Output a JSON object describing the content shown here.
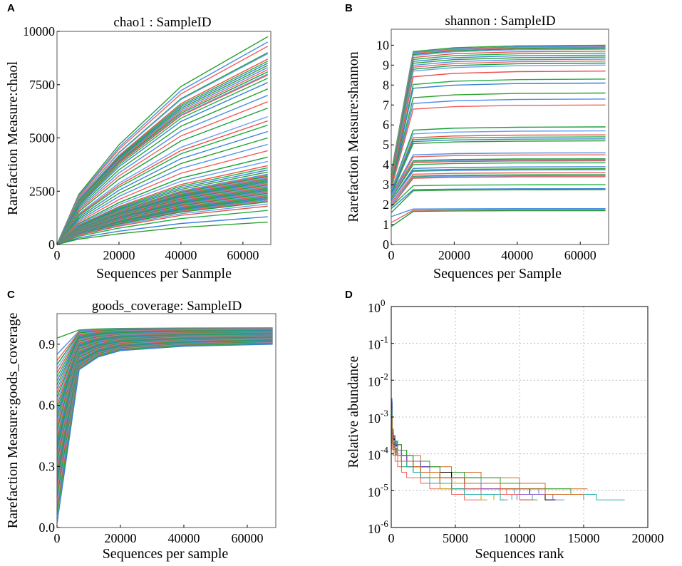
{
  "palette": [
    "#2ca02c",
    "#4a8fe8",
    "#f0605c",
    "#159f3a",
    "#6aa0f0",
    "#e8504a",
    "#20b040",
    "#3a7fd8"
  ],
  "step_palette": [
    "#2ca02c",
    "#4a8fe8",
    "#f0605c",
    "#000000",
    "#c8a000",
    "#8a5ad0",
    "#20b0b0",
    "#d06a20"
  ],
  "chart_data": [
    {
      "id": "A",
      "panel_label": "A",
      "type": "line",
      "title": "chao1 : SampleID",
      "xlabel": "Sequences per Sanmple",
      "ylabel": "Rarefaction Measure:chaol",
      "xlim": [
        0,
        69000
      ],
      "ylim": [
        0,
        10000
      ],
      "x_ticks": [
        0,
        20000,
        40000,
        60000
      ],
      "y_ticks": [
        0,
        2500,
        5000,
        7500,
        10000
      ],
      "grid": false,
      "x_points": [
        0,
        7000,
        20000,
        40000,
        68000
      ],
      "curve_shape": [
        0,
        0.24,
        0.48,
        0.76,
        1.0
      ],
      "series_count": 65,
      "series_end_values": [
        9750,
        9500,
        9300,
        9000,
        8950,
        8700,
        8600,
        8500,
        8400,
        8300,
        8200,
        8100,
        8000,
        7950,
        7800,
        7600,
        7300,
        7000,
        6700,
        6400,
        6000,
        5800,
        5600,
        5300,
        5000,
        4700,
        4400,
        4100,
        3900,
        3700,
        3600,
        3500,
        3400,
        3300,
        3250,
        3200,
        3150,
        3100,
        3050,
        3000,
        2950,
        2900,
        2850,
        2800,
        2750,
        2700,
        2650,
        2600,
        2550,
        2500,
        2450,
        2400,
        2350,
        2300,
        2250,
        2200,
        2150,
        2100,
        2050,
        2000,
        1900,
        1800,
        1600,
        1300,
        1050
      ]
    },
    {
      "id": "B",
      "panel_label": "B",
      "type": "line",
      "title": "shannon : SampleID",
      "xlabel": "Sequences per Sample",
      "ylabel": "Rarefaction Measure:shannon",
      "xlim": [
        0,
        69000
      ],
      "ylim": [
        0,
        10.8
      ],
      "x_ticks": [
        0,
        20000,
        40000,
        60000
      ],
      "y_ticks": [
        0,
        1,
        2,
        3,
        4,
        5,
        6,
        7,
        8,
        9,
        10
      ],
      "grid": false,
      "x_points": [
        0,
        7000,
        20000,
        40000,
        68000
      ],
      "curve_shape": [
        0,
        0.95,
        0.98,
        0.995,
        1.0
      ],
      "series_count": 44,
      "series_start_values": [
        3.6,
        3.5,
        3.5,
        3.4,
        3.4,
        3.3,
        3.3,
        3.2,
        3.2,
        3.1,
        3.1,
        3.0,
        3.0,
        3.0,
        2.9,
        2.9,
        2.9,
        2.8,
        2.8,
        2.7,
        2.7,
        2.6,
        2.6,
        2.6,
        2.5,
        2.5,
        2.4,
        2.4,
        2.4,
        2.3,
        2.3,
        2.2,
        2.2,
        2.2,
        2.1,
        2.0,
        2.0,
        1.9,
        1.9,
        1.8,
        1.6,
        1.4,
        1.1,
        0.9
      ],
      "series_end_values": [
        10.0,
        9.95,
        9.9,
        9.85,
        9.8,
        9.7,
        9.6,
        9.5,
        9.4,
        9.3,
        9.2,
        9.1,
        9.0,
        8.7,
        8.3,
        8.1,
        7.6,
        7.3,
        7.0,
        5.9,
        5.7,
        5.5,
        5.4,
        5.3,
        5.2,
        4.6,
        4.5,
        4.3,
        4.25,
        4.2,
        4.1,
        3.9,
        3.8,
        3.75,
        3.6,
        3.5,
        3.45,
        3.4,
        3.0,
        2.8,
        2.75,
        1.8,
        1.75,
        1.7
      ]
    },
    {
      "id": "C",
      "panel_label": "C",
      "type": "line",
      "title": "goods_coverage: SampleID",
      "xlabel": "Sequences per sample",
      "ylabel": "Rarefaction Measure:goods_coverage",
      "xlim": [
        0,
        69000
      ],
      "ylim": [
        0,
        1.05
      ],
      "x_ticks": [
        0,
        20000,
        40000,
        60000
      ],
      "y_ticks": [
        0.0,
        0.3,
        0.6,
        0.9
      ],
      "y_tick_labels": [
        "0.0",
        "0.3",
        "0.6",
        "0.9"
      ],
      "grid": false,
      "x_points": [
        0,
        7000,
        13000,
        20000,
        40000,
        68000
      ],
      "series_count": 40,
      "series_start_values": [
        0.93,
        0.85,
        0.82,
        0.8,
        0.78,
        0.76,
        0.74,
        0.72,
        0.7,
        0.68,
        0.66,
        0.64,
        0.62,
        0.6,
        0.58,
        0.56,
        0.54,
        0.52,
        0.5,
        0.48,
        0.46,
        0.44,
        0.42,
        0.4,
        0.38,
        0.36,
        0.34,
        0.32,
        0.3,
        0.28,
        0.26,
        0.24,
        0.22,
        0.2,
        0.18,
        0.15,
        0.12,
        0.09,
        0.06,
        0.02
      ],
      "series_mid_values": [
        0.97,
        0.965,
        0.96,
        0.955,
        0.95,
        0.945,
        0.94,
        0.935,
        0.93,
        0.925,
        0.92,
        0.915,
        0.91,
        0.905,
        0.9,
        0.895,
        0.89,
        0.885,
        0.88,
        0.875,
        0.87,
        0.865,
        0.86,
        0.855,
        0.85,
        0.845,
        0.84,
        0.835,
        0.83,
        0.825,
        0.82,
        0.815,
        0.81,
        0.805,
        0.8,
        0.795,
        0.79,
        0.785,
        0.78,
        0.775
      ],
      "series_end_values": [
        0.98,
        0.978,
        0.976,
        0.974,
        0.972,
        0.97,
        0.968,
        0.966,
        0.964,
        0.962,
        0.96,
        0.958,
        0.956,
        0.954,
        0.952,
        0.95,
        0.948,
        0.946,
        0.944,
        0.942,
        0.94,
        0.938,
        0.936,
        0.934,
        0.932,
        0.93,
        0.928,
        0.926,
        0.924,
        0.922,
        0.92,
        0.918,
        0.916,
        0.914,
        0.912,
        0.91,
        0.908,
        0.906,
        0.904,
        0.9
      ]
    },
    {
      "id": "D",
      "panel_label": "D",
      "type": "line",
      "title": "",
      "xlabel": "Sequences rank",
      "ylabel": "Relative abundance",
      "xscale": "linear",
      "yscale": "log",
      "xlim": [
        0,
        20000
      ],
      "ylim": [
        1e-06,
        1
      ],
      "x_ticks": [
        0,
        5000,
        10000,
        15000,
        20000
      ],
      "y_tick_exponents": [
        0,
        -1,
        -2,
        -3,
        -4,
        -5,
        -6
      ],
      "y_tick_base": "10",
      "grid": true,
      "series_count": 40,
      "series_start_exponent": [
        -2.5,
        -2.6,
        -2.7,
        -2.8,
        -2.6,
        -2.9,
        -3.0,
        -2.7,
        -2.8,
        -2.5,
        -3.1,
        -2.9,
        -2.6,
        -2.8,
        -3.0,
        -2.7,
        -2.9,
        -2.6,
        -2.8,
        -3.0,
        -2.7,
        -2.9,
        -2.6,
        -2.8,
        -3.0,
        -2.7,
        -2.9,
        -2.6,
        -2.8,
        -3.0,
        -2.7,
        -2.9,
        -2.6,
        -2.8,
        -3.0,
        -2.7,
        -2.9,
        -2.6,
        -2.8,
        -3.0
      ],
      "series_end_exponent": [
        -5.0,
        -5.05,
        -5.1,
        -5.15,
        -5.2,
        -5.25,
        -5.3,
        -5.0,
        -5.1,
        -5.2,
        -5.3,
        -5.05,
        -5.15,
        -5.25,
        -5.0,
        -5.1,
        -5.2,
        -5.3,
        -5.05,
        -5.15,
        -5.25,
        -5.0,
        -5.1,
        -5.2,
        -5.3,
        -5.05,
        -5.15,
        -5.25,
        -5.0,
        -5.1,
        -5.2,
        -5.3,
        -5.05,
        -5.15,
        -5.25,
        -5.0,
        -5.1,
        -5.2,
        -5.3,
        -5.2
      ],
      "series_max_rank": [
        9200,
        11500,
        10500,
        12000,
        8000,
        10000,
        18200,
        15300,
        9500,
        11000,
        7000,
        10800,
        12500,
        9800,
        11200,
        8500,
        10200,
        13500,
        9000,
        11800,
        7500,
        10400,
        12200,
        8800,
        11400,
        9600,
        10600,
        12800,
        8200,
        11600,
        9400,
        10900,
        14000,
        8700,
        11100,
        9900,
        10300,
        12600,
        9100,
        15000
      ]
    }
  ]
}
